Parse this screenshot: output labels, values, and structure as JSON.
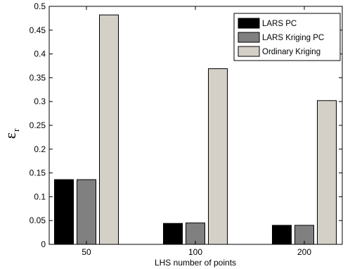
{
  "chart_data": {
    "type": "bar",
    "title": "",
    "xlabel": "LHS number of points",
    "ylabel": {
      "main": "ε",
      "sub": "r"
    },
    "categories": [
      "50",
      "100",
      "200"
    ],
    "ylim": [
      0,
      0.5
    ],
    "yticks": [
      0,
      0.05,
      0.1,
      0.15,
      0.2,
      0.25,
      0.3,
      0.35,
      0.4,
      0.45,
      0.5
    ],
    "ytick_labels": [
      "0",
      "0.05",
      "0.1",
      "0.15",
      "0.2",
      "0.25",
      "0.3",
      "0.35",
      "0.4",
      "0.45",
      "0.5"
    ],
    "grid": false,
    "legend_position": "top-right",
    "series": [
      {
        "name": "LARS PC",
        "color": "#000000",
        "values": [
          0.136,
          0.044,
          0.04
        ]
      },
      {
        "name": "LARS Kriging PC",
        "color": "#808080",
        "values": [
          0.136,
          0.045,
          0.04
        ]
      },
      {
        "name": "Ordinary Kriging",
        "color": "#d4d0c8",
        "values": [
          0.482,
          0.369,
          0.302
        ]
      }
    ]
  }
}
